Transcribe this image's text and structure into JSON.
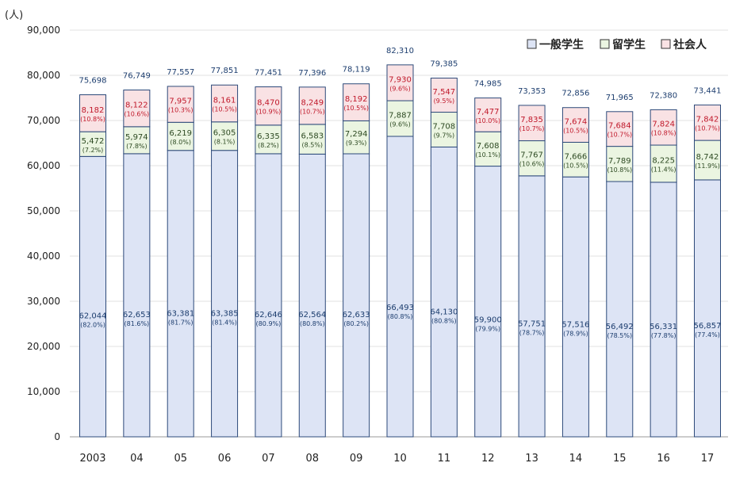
{
  "unit_label": "(人)",
  "chart_data": {
    "type": "bar",
    "stacked": true,
    "categories": [
      "2003",
      "04",
      "05",
      "06",
      "07",
      "08",
      "09",
      "10",
      "11",
      "12",
      "13",
      "14",
      "15",
      "16",
      "17"
    ],
    "ylim": [
      0,
      90000
    ],
    "yticks": [
      "0",
      "10,000",
      "20,000",
      "30,000",
      "40,000",
      "50,000",
      "60,000",
      "70,000",
      "80,000",
      "90,000"
    ],
    "ytick_values": [
      0,
      10000,
      20000,
      30000,
      40000,
      50000,
      60000,
      70000,
      80000,
      90000
    ],
    "grid": true,
    "legend_position": "top-right",
    "series": [
      {
        "name": "一般学生",
        "color": "#dde4f5",
        "edge": "#2d4a7a",
        "label_color": "#1c3d6e",
        "values": [
          62044,
          62653,
          63381,
          63385,
          62646,
          62564,
          62633,
          66493,
          64130,
          59900,
          57751,
          57516,
          56492,
          56331,
          56857
        ],
        "labels": [
          "62,044",
          "62,653",
          "63,381",
          "63,385",
          "62,646",
          "62,564",
          "62,633",
          "66,493",
          "64,130",
          "59,900",
          "57,751",
          "57,516",
          "56,492",
          "56,331",
          "56,857"
        ],
        "pct": [
          "(82.0%)",
          "(81.6%)",
          "(81.7%)",
          "(81.4%)",
          "(80.9%)",
          "(80.8%)",
          "(80.2%)",
          "(80.8%)",
          "(80.8%)",
          "(79.9%)",
          "(78.7%)",
          "(78.9%)",
          "(78.5%)",
          "(77.8%)",
          "(77.4%)"
        ]
      },
      {
        "name": "留学生",
        "color": "#ebf5e1",
        "edge": "#2d4a7a",
        "label_color": "#2d4a22",
        "values": [
          5472,
          5974,
          6219,
          6305,
          6335,
          6583,
          7294,
          7887,
          7708,
          7608,
          7767,
          7666,
          7789,
          8225,
          8742
        ],
        "labels": [
          "5,472",
          "5,974",
          "6,219",
          "6,305",
          "6,335",
          "6,583",
          "7,294",
          "7,887",
          "7,708",
          "7,608",
          "7,767",
          "7,666",
          "7,789",
          "8,225",
          "8,742"
        ],
        "pct": [
          "(7.2%)",
          "(7.8%)",
          "(8.0%)",
          "(8.1%)",
          "(8.2%)",
          "(8.5%)",
          "(9.3%)",
          "(9.6%)",
          "(9.7%)",
          "(10.1%)",
          "(10.6%)",
          "(10.5%)",
          "(10.8%)",
          "(11.4%)",
          "(11.9%)"
        ]
      },
      {
        "name": "社会人",
        "color": "#f9e2e4",
        "edge": "#2d4a7a",
        "label_color": "#c0182a",
        "values": [
          8182,
          8122,
          7957,
          8161,
          8470,
          8249,
          8192,
          7930,
          7547,
          7477,
          7835,
          7674,
          7684,
          7824,
          7842
        ],
        "labels": [
          "8,182",
          "8,122",
          "7,957",
          "8,161",
          "8,470",
          "8,249",
          "8,192",
          "7,930",
          "7,547",
          "7,477",
          "7,835",
          "7,674",
          "7,684",
          "7,824",
          "7,842"
        ],
        "pct": [
          "(10.8%)",
          "(10.6%)",
          "(10.3%)",
          "(10.5%)",
          "(10.9%)",
          "(10.7%)",
          "(10.5%)",
          "(9.6%)",
          "(9.5%)",
          "(10.0%)",
          "(10.7%)",
          "(10.5%)",
          "(10.7%)",
          "(10.8%)",
          "(10.7%)"
        ]
      }
    ],
    "totals": [
      75698,
      76749,
      77557,
      77851,
      77451,
      77396,
      78119,
      82310,
      79385,
      74985,
      73353,
      72856,
      71965,
      72380,
      73441
    ],
    "total_labels": [
      "75,698",
      "76,749",
      "77,557",
      "77,851",
      "77,451",
      "77,396",
      "78,119",
      "82,310",
      "79,385",
      "74,985",
      "73,353",
      "72,856",
      "71,965",
      "72,380",
      "73,441"
    ]
  }
}
